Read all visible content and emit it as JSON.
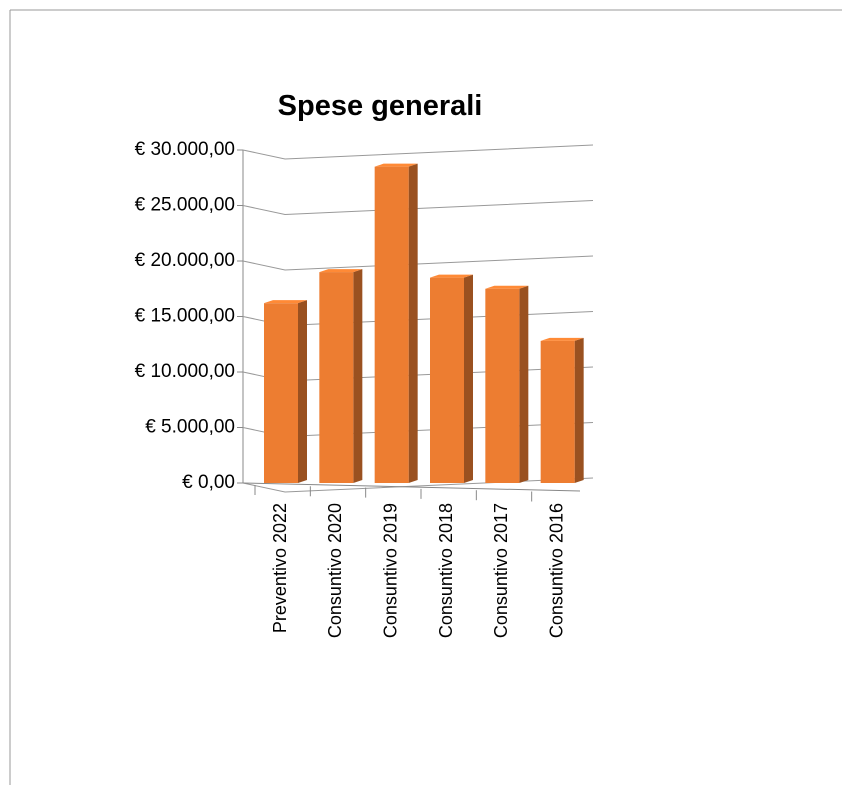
{
  "chart_data": {
    "type": "bar",
    "title": "Spese generali",
    "categories": [
      "Preventivo 2022",
      "Consuntivo 2020",
      "Consuntivo 2019",
      "Consuntivo 2018",
      "Consuntivo 2017",
      "Consuntivo 2016"
    ],
    "values": [
      16200,
      19000,
      28500,
      18500,
      17500,
      12800
    ],
    "color": "#ed7d31",
    "ylim": [
      0,
      30000
    ],
    "yticks": [
      {
        "value": 0,
        "label": "€ 0,00"
      },
      {
        "value": 5000,
        "label": "€ 5.000,00"
      },
      {
        "value": 10000,
        "label": "€ 10.000,00"
      },
      {
        "value": 15000,
        "label": "€ 15.000,00"
      },
      {
        "value": 20000,
        "label": "€ 20.000,00"
      },
      {
        "value": 25000,
        "label": "€ 25.000,00"
      },
      {
        "value": 30000,
        "label": "€ 30.000,00"
      }
    ],
    "grid": true
  }
}
